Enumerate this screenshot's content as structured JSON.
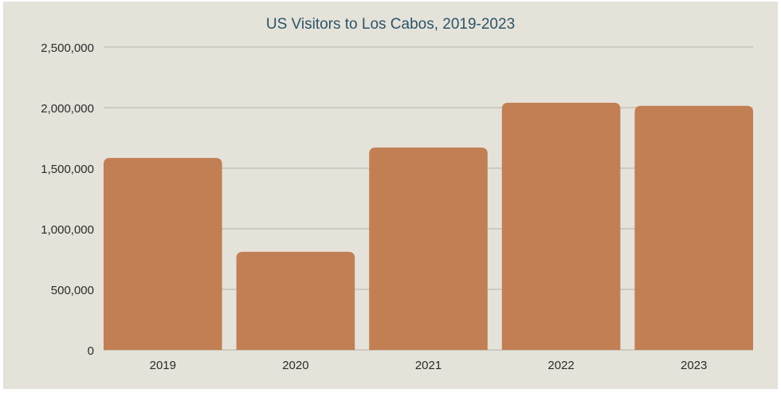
{
  "chart_data": {
    "type": "bar",
    "title": "US Visitors to Los Cabos, 2019-2023",
    "xlabel": "",
    "ylabel": "",
    "categories": [
      "2019",
      "2020",
      "2021",
      "2022",
      "2023"
    ],
    "values": [
      1585000,
      810000,
      1670000,
      2040000,
      2015000
    ],
    "ylim": [
      0,
      2500000
    ],
    "yticks": [
      0,
      500000,
      1000000,
      1500000,
      2000000,
      2500000
    ],
    "ytick_labels": [
      "0",
      "500,000",
      "1,000,000",
      "1,500,000",
      "2,000,000",
      "2,500,000"
    ],
    "grid": true,
    "legend": "none",
    "colors": {
      "bar": "#c17f53",
      "background": "#e5e2da",
      "title": "#2c5466",
      "grid": "#c5c1b8"
    }
  }
}
